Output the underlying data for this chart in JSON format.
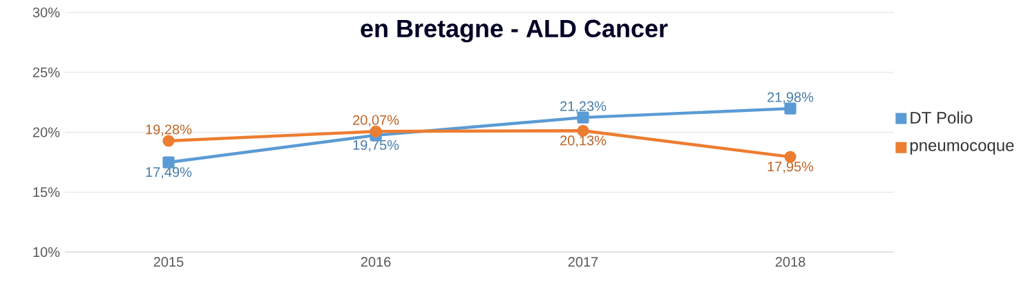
{
  "chart_data": {
    "type": "line",
    "title": "en Bretagne - ALD Cancer",
    "categories": [
      "2015",
      "2016",
      "2017",
      "2018"
    ],
    "series": [
      {
        "name": "DT Polio",
        "color": "#5b9bd5",
        "marker": "square",
        "values": [
          17.49,
          19.75,
          21.23,
          21.98
        ],
        "value_labels": [
          "17,49%",
          "19,75%",
          "21,23%",
          "21,98%"
        ]
      },
      {
        "name": "pneumocoque",
        "color": "#ed7d31",
        "marker": "circle",
        "values": [
          19.28,
          20.07,
          20.13,
          17.95
        ],
        "value_labels": [
          "19,28%",
          "20,07%",
          "20,13%",
          "17,95%"
        ]
      }
    ],
    "ylim": [
      10,
      30
    ],
    "yticks": [
      {
        "value": 10,
        "label": "10%"
      },
      {
        "value": 15,
        "label": "15%"
      },
      {
        "value": 20,
        "label": "20%"
      },
      {
        "value": 25,
        "label": "25%"
      },
      {
        "value": 30,
        "label": "30%"
      }
    ],
    "grid": "y",
    "legend": "right",
    "line_style": "solid"
  }
}
